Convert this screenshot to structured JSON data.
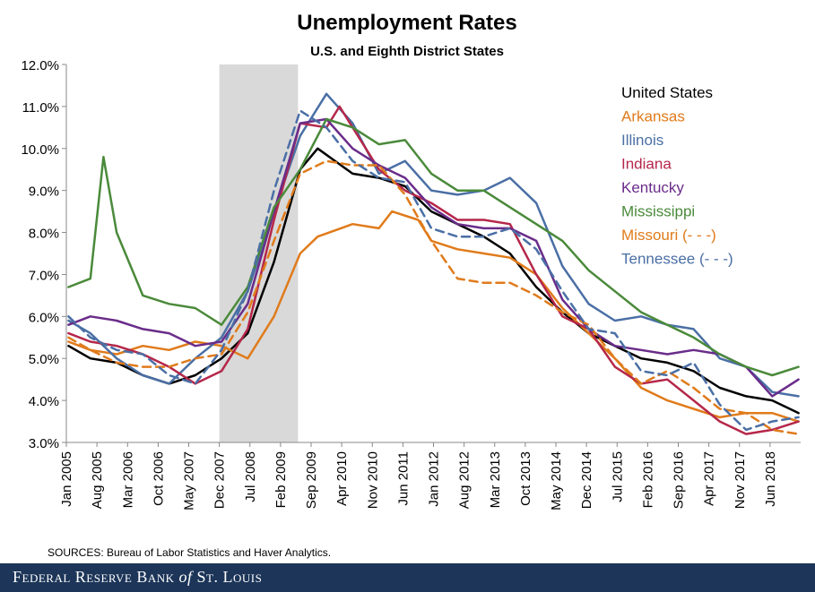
{
  "chart_data": {
    "type": "line",
    "title": "Unemployment Rates",
    "subtitle": "U.S. and Eighth District States",
    "ylabel": "",
    "xlabel": "",
    "ylim": [
      3.0,
      12.0
    ],
    "yticks": [
      3.0,
      4.0,
      5.0,
      6.0,
      7.0,
      8.0,
      9.0,
      10.0,
      11.0,
      12.0
    ],
    "ytick_labels": [
      "3.0%",
      "4.0%",
      "5.0%",
      "6.0%",
      "7.0%",
      "8.0%",
      "9.0%",
      "10.0%",
      "11.0%",
      "12.0%"
    ],
    "x_range": [
      "Jan 2005",
      "Dec 2018"
    ],
    "xticks": [
      {
        "label": "Jan 2005",
        "year": 2005,
        "month": 1
      },
      {
        "label": "Aug 2005",
        "year": 2005,
        "month": 8
      },
      {
        "label": "Mar 2006",
        "year": 2006,
        "month": 3
      },
      {
        "label": "Oct 2006",
        "year": 2006,
        "month": 10
      },
      {
        "label": "May 2007",
        "year": 2007,
        "month": 5
      },
      {
        "label": "Dec 2007",
        "year": 2007,
        "month": 12
      },
      {
        "label": "Jul 2008",
        "year": 2008,
        "month": 7
      },
      {
        "label": "Feb 2009",
        "year": 2009,
        "month": 2
      },
      {
        "label": "Sep 2009",
        "year": 2009,
        "month": 9
      },
      {
        "label": "Apr 2010",
        "year": 2010,
        "month": 4
      },
      {
        "label": "Nov 2010",
        "year": 2010,
        "month": 11
      },
      {
        "label": "Jun 2011",
        "year": 2011,
        "month": 6
      },
      {
        "label": "Jan 2012",
        "year": 2012,
        "month": 1
      },
      {
        "label": "Aug 2012",
        "year": 2012,
        "month": 8
      },
      {
        "label": "Mar 2013",
        "year": 2013,
        "month": 3
      },
      {
        "label": "Oct 2013",
        "year": 2013,
        "month": 10
      },
      {
        "label": "May 2014",
        "year": 2014,
        "month": 5
      },
      {
        "label": "Dec 2014",
        "year": 2014,
        "month": 12
      },
      {
        "label": "Jul 2015",
        "year": 2015,
        "month": 7
      },
      {
        "label": "Feb 2016",
        "year": 2016,
        "month": 2
      },
      {
        "label": "Sep 2016",
        "year": 2016,
        "month": 9
      },
      {
        "label": "Apr 2017",
        "year": 2017,
        "month": 4
      },
      {
        "label": "Nov 2017",
        "year": 2017,
        "month": 11
      },
      {
        "label": "Jun 2018",
        "year": 2018,
        "month": 6
      }
    ],
    "recession": {
      "start": "2007-12",
      "end": "2009-06",
      "color": "#d9d9d9"
    },
    "legend_position": "top-right",
    "series": [
      {
        "name": "United States",
        "color": "#000000",
        "dashed": false,
        "points": [
          [
            "2005-01",
            5.3
          ],
          [
            "2005-06",
            5.0
          ],
          [
            "2005-12",
            4.9
          ],
          [
            "2006-06",
            4.6
          ],
          [
            "2006-12",
            4.4
          ],
          [
            "2007-06",
            4.6
          ],
          [
            "2007-12",
            5.0
          ],
          [
            "2008-06",
            5.6
          ],
          [
            "2008-12",
            7.3
          ],
          [
            "2009-06",
            9.5
          ],
          [
            "2009-10",
            10.0
          ],
          [
            "2010-06",
            9.4
          ],
          [
            "2010-12",
            9.3
          ],
          [
            "2011-06",
            9.1
          ],
          [
            "2011-12",
            8.5
          ],
          [
            "2012-06",
            8.2
          ],
          [
            "2012-12",
            7.9
          ],
          [
            "2013-06",
            7.5
          ],
          [
            "2013-12",
            6.7
          ],
          [
            "2014-06",
            6.1
          ],
          [
            "2014-12",
            5.6
          ],
          [
            "2015-06",
            5.3
          ],
          [
            "2015-12",
            5.0
          ],
          [
            "2016-06",
            4.9
          ],
          [
            "2016-12",
            4.7
          ],
          [
            "2017-06",
            4.3
          ],
          [
            "2017-12",
            4.1
          ],
          [
            "2018-06",
            4.0
          ],
          [
            "2018-12",
            3.7
          ]
        ]
      },
      {
        "name": "Arkansas",
        "color": "#e07b1b",
        "dashed": false,
        "points": [
          [
            "2005-01",
            5.4
          ],
          [
            "2005-06",
            5.2
          ],
          [
            "2005-12",
            5.1
          ],
          [
            "2006-06",
            5.3
          ],
          [
            "2006-12",
            5.2
          ],
          [
            "2007-06",
            5.4
          ],
          [
            "2007-12",
            5.3
          ],
          [
            "2008-06",
            5.0
          ],
          [
            "2008-12",
            6.0
          ],
          [
            "2009-06",
            7.5
          ],
          [
            "2009-10",
            7.9
          ],
          [
            "2010-06",
            8.2
          ],
          [
            "2010-12",
            8.1
          ],
          [
            "2011-03",
            8.5
          ],
          [
            "2011-09",
            8.3
          ],
          [
            "2011-12",
            7.8
          ],
          [
            "2012-06",
            7.6
          ],
          [
            "2012-12",
            7.5
          ],
          [
            "2013-06",
            7.4
          ],
          [
            "2013-12",
            7.0
          ],
          [
            "2014-06",
            6.2
          ],
          [
            "2014-12",
            5.6
          ],
          [
            "2015-06",
            5.0
          ],
          [
            "2015-12",
            4.3
          ],
          [
            "2016-06",
            4.0
          ],
          [
            "2016-12",
            3.8
          ],
          [
            "2017-06",
            3.6
          ],
          [
            "2017-12",
            3.7
          ],
          [
            "2018-06",
            3.7
          ],
          [
            "2018-12",
            3.5
          ]
        ]
      },
      {
        "name": "Illinois",
        "color": "#4a6fa5",
        "dashed": false,
        "points": [
          [
            "2005-01",
            5.9
          ],
          [
            "2005-06",
            5.6
          ],
          [
            "2005-12",
            5.0
          ],
          [
            "2006-06",
            4.6
          ],
          [
            "2006-12",
            4.4
          ],
          [
            "2007-06",
            5.0
          ],
          [
            "2007-12",
            5.5
          ],
          [
            "2008-06",
            6.6
          ],
          [
            "2008-12",
            8.5
          ],
          [
            "2009-06",
            10.3
          ],
          [
            "2009-12",
            11.3
          ],
          [
            "2010-06",
            10.6
          ],
          [
            "2010-12",
            9.4
          ],
          [
            "2011-06",
            9.7
          ],
          [
            "2011-12",
            9.0
          ],
          [
            "2012-06",
            8.9
          ],
          [
            "2012-12",
            9.0
          ],
          [
            "2013-06",
            9.3
          ],
          [
            "2013-12",
            8.7
          ],
          [
            "2014-06",
            7.2
          ],
          [
            "2014-12",
            6.3
          ],
          [
            "2015-06",
            5.9
          ],
          [
            "2015-12",
            6.0
          ],
          [
            "2016-06",
            5.8
          ],
          [
            "2016-12",
            5.7
          ],
          [
            "2017-06",
            5.0
          ],
          [
            "2017-12",
            4.8
          ],
          [
            "2018-06",
            4.2
          ],
          [
            "2018-12",
            4.1
          ]
        ]
      },
      {
        "name": "Indiana",
        "color": "#b5274a",
        "dashed": false,
        "points": [
          [
            "2005-01",
            5.6
          ],
          [
            "2005-06",
            5.4
          ],
          [
            "2005-12",
            5.3
          ],
          [
            "2006-06",
            5.1
          ],
          [
            "2006-12",
            4.8
          ],
          [
            "2007-06",
            4.4
          ],
          [
            "2007-12",
            4.7
          ],
          [
            "2008-06",
            5.7
          ],
          [
            "2008-12",
            8.3
          ],
          [
            "2009-06",
            10.6
          ],
          [
            "2009-12",
            10.5
          ],
          [
            "2010-03",
            11.0
          ],
          [
            "2010-06",
            10.5
          ],
          [
            "2010-12",
            9.5
          ],
          [
            "2011-06",
            9.0
          ],
          [
            "2011-12",
            8.7
          ],
          [
            "2012-06",
            8.3
          ],
          [
            "2012-12",
            8.3
          ],
          [
            "2013-06",
            8.2
          ],
          [
            "2013-12",
            7.0
          ],
          [
            "2014-06",
            6.0
          ],
          [
            "2014-12",
            5.7
          ],
          [
            "2015-06",
            4.8
          ],
          [
            "2015-12",
            4.4
          ],
          [
            "2016-06",
            4.5
          ],
          [
            "2016-12",
            4.0
          ],
          [
            "2017-06",
            3.5
          ],
          [
            "2017-12",
            3.2
          ],
          [
            "2018-06",
            3.3
          ],
          [
            "2018-12",
            3.5
          ]
        ]
      },
      {
        "name": "Kentucky",
        "color": "#6a2c8a",
        "dashed": false,
        "points": [
          [
            "2005-01",
            5.8
          ],
          [
            "2005-06",
            6.0
          ],
          [
            "2005-12",
            5.9
          ],
          [
            "2006-06",
            5.7
          ],
          [
            "2006-12",
            5.6
          ],
          [
            "2007-06",
            5.3
          ],
          [
            "2007-12",
            5.4
          ],
          [
            "2008-06",
            6.3
          ],
          [
            "2008-12",
            8.5
          ],
          [
            "2009-06",
            10.6
          ],
          [
            "2009-12",
            10.7
          ],
          [
            "2010-06",
            10.0
          ],
          [
            "2010-12",
            9.6
          ],
          [
            "2011-06",
            9.3
          ],
          [
            "2011-12",
            8.6
          ],
          [
            "2012-06",
            8.2
          ],
          [
            "2012-12",
            8.1
          ],
          [
            "2013-06",
            8.1
          ],
          [
            "2013-12",
            7.8
          ],
          [
            "2014-06",
            6.4
          ],
          [
            "2014-12",
            5.7
          ],
          [
            "2015-06",
            5.3
          ],
          [
            "2015-12",
            5.2
          ],
          [
            "2016-06",
            5.1
          ],
          [
            "2016-12",
            5.2
          ],
          [
            "2017-06",
            5.1
          ],
          [
            "2017-12",
            4.8
          ],
          [
            "2018-06",
            4.1
          ],
          [
            "2018-12",
            4.5
          ]
        ]
      },
      {
        "name": "Mississippi",
        "color": "#4a8a3a",
        "dashed": false,
        "points": [
          [
            "2005-01",
            6.7
          ],
          [
            "2005-06",
            6.9
          ],
          [
            "2005-09",
            9.8
          ],
          [
            "2005-12",
            8.0
          ],
          [
            "2006-06",
            6.5
          ],
          [
            "2006-12",
            6.3
          ],
          [
            "2007-06",
            6.2
          ],
          [
            "2007-12",
            5.8
          ],
          [
            "2008-06",
            6.7
          ],
          [
            "2008-12",
            8.6
          ],
          [
            "2009-06",
            9.5
          ],
          [
            "2009-12",
            10.7
          ],
          [
            "2010-06",
            10.5
          ],
          [
            "2010-12",
            10.1
          ],
          [
            "2011-06",
            10.2
          ],
          [
            "2011-12",
            9.4
          ],
          [
            "2012-06",
            9.0
          ],
          [
            "2012-12",
            9.0
          ],
          [
            "2013-06",
            8.6
          ],
          [
            "2013-12",
            8.2
          ],
          [
            "2014-06",
            7.8
          ],
          [
            "2014-12",
            7.1
          ],
          [
            "2015-06",
            6.6
          ],
          [
            "2015-12",
            6.1
          ],
          [
            "2016-06",
            5.8
          ],
          [
            "2016-12",
            5.5
          ],
          [
            "2017-06",
            5.1
          ],
          [
            "2017-12",
            4.8
          ],
          [
            "2018-06",
            4.6
          ],
          [
            "2018-12",
            4.8
          ]
        ]
      },
      {
        "name": "Missouri (- - -)",
        "color": "#e07b1b",
        "dashed": true,
        "points": [
          [
            "2005-01",
            5.5
          ],
          [
            "2005-06",
            5.2
          ],
          [
            "2005-12",
            4.9
          ],
          [
            "2006-06",
            4.8
          ],
          [
            "2006-12",
            4.8
          ],
          [
            "2007-06",
            5.0
          ],
          [
            "2007-12",
            5.1
          ],
          [
            "2008-06",
            6.1
          ],
          [
            "2008-12",
            7.8
          ],
          [
            "2009-06",
            9.4
          ],
          [
            "2009-12",
            9.7
          ],
          [
            "2010-06",
            9.6
          ],
          [
            "2010-12",
            9.6
          ],
          [
            "2011-06",
            8.9
          ],
          [
            "2011-12",
            7.8
          ],
          [
            "2012-06",
            6.9
          ],
          [
            "2012-12",
            6.8
          ],
          [
            "2013-06",
            6.8
          ],
          [
            "2013-12",
            6.5
          ],
          [
            "2014-06",
            6.1
          ],
          [
            "2014-12",
            5.8
          ],
          [
            "2015-06",
            5.0
          ],
          [
            "2015-12",
            4.4
          ],
          [
            "2016-06",
            4.7
          ],
          [
            "2016-12",
            4.3
          ],
          [
            "2017-06",
            3.8
          ],
          [
            "2017-12",
            3.7
          ],
          [
            "2018-06",
            3.3
          ],
          [
            "2018-12",
            3.2
          ]
        ]
      },
      {
        "name": "Tennessee  (- - -)",
        "color": "#4a6fa5",
        "dashed": true,
        "points": [
          [
            "2005-01",
            6.0
          ],
          [
            "2005-06",
            5.5
          ],
          [
            "2005-12",
            5.2
          ],
          [
            "2006-06",
            5.1
          ],
          [
            "2006-12",
            4.6
          ],
          [
            "2007-06",
            4.4
          ],
          [
            "2007-12",
            5.2
          ],
          [
            "2008-06",
            6.6
          ],
          [
            "2008-12",
            9.0
          ],
          [
            "2009-06",
            10.9
          ],
          [
            "2009-12",
            10.5
          ],
          [
            "2010-06",
            9.7
          ],
          [
            "2010-12",
            9.3
          ],
          [
            "2011-06",
            9.2
          ],
          [
            "2011-12",
            8.1
          ],
          [
            "2012-06",
            7.9
          ],
          [
            "2012-12",
            7.9
          ],
          [
            "2013-06",
            8.1
          ],
          [
            "2013-12",
            7.6
          ],
          [
            "2014-06",
            6.6
          ],
          [
            "2014-12",
            5.7
          ],
          [
            "2015-06",
            5.6
          ],
          [
            "2015-12",
            4.7
          ],
          [
            "2016-06",
            4.6
          ],
          [
            "2016-12",
            4.9
          ],
          [
            "2017-06",
            3.9
          ],
          [
            "2017-12",
            3.3
          ],
          [
            "2018-06",
            3.5
          ],
          [
            "2018-12",
            3.6
          ]
        ]
      }
    ]
  },
  "source_note": "SOURCES: Bureau of Labor Statistics and Haver Analytics.",
  "footer": {
    "brand_part1": "Federal Reserve Bank ",
    "brand_of": "of",
    "brand_part2": " St. Louis"
  }
}
